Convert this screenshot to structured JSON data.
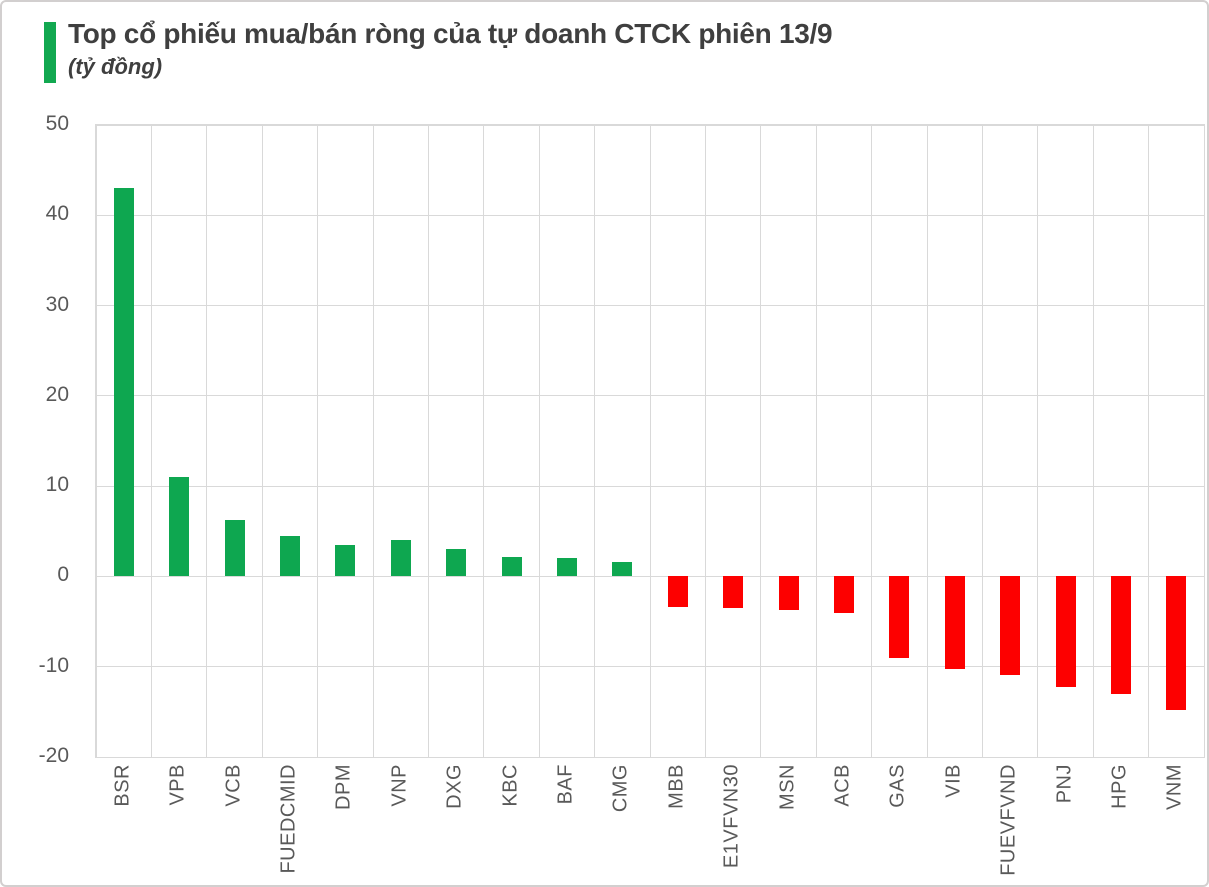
{
  "header": {
    "title": "Top cổ phiếu mua/bán ròng của tự doanh CTCK phiên 13/9",
    "subtitle": "(tỷ đồng)"
  },
  "colors": {
    "positive": "#0ea750",
    "negative": "#fd0000",
    "accent": "#12a850",
    "grid": "#d9d9d9",
    "axis_text": "#595959",
    "title_text": "#3f3f3f",
    "border": "#d2cfcf"
  },
  "chart_data": {
    "type": "bar",
    "title": "Top cổ phiếu mua/bán ròng của tự doanh CTCK phiên 13/9",
    "subtitle_unit": "(tỷ đồng)",
    "categories": [
      "BSR",
      "VPB",
      "VCB",
      "FUEDCMID",
      "DPM",
      "VNP",
      "DXG",
      "KBC",
      "BAF",
      "CMG",
      "MBB",
      "E1VFVN30",
      "MSN",
      "ACB",
      "GAS",
      "VIB",
      "FUEVFVND",
      "PNJ",
      "HPG",
      "VNM"
    ],
    "values": [
      43,
      11,
      6.3,
      4.5,
      3.5,
      4,
      3,
      2.1,
      2,
      1.6,
      -3.4,
      -3.5,
      -3.7,
      -4.1,
      -9,
      -10.2,
      -10.9,
      -12.2,
      -13,
      -14.8
    ],
    "xlabel": "",
    "ylabel": "",
    "ylim": [
      -20,
      50
    ],
    "yticks": [
      50,
      40,
      30,
      20,
      10,
      0,
      -10,
      -20
    ],
    "grid": true,
    "legend": false,
    "positive_color": "#0ea750",
    "negative_color": "#fd0000",
    "x_tick_rotation_deg": 90
  }
}
